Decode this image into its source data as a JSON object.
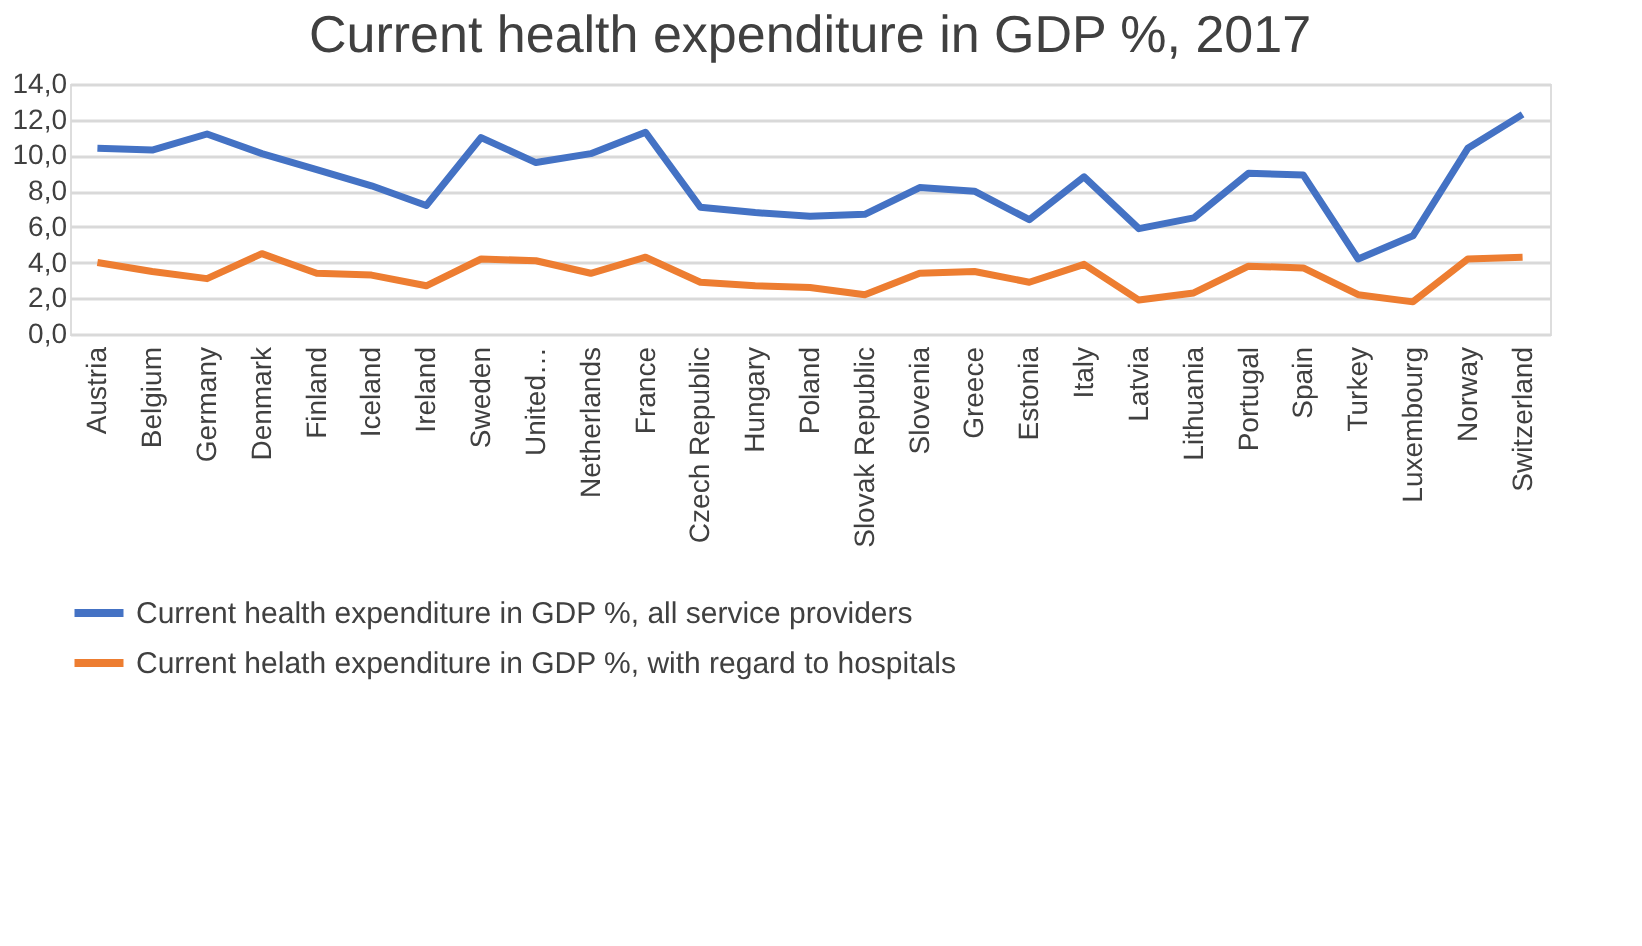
{
  "chart_data": {
    "type": "line",
    "title": "Current health expenditure in GDP %, 2017",
    "categories": [
      "Austria",
      "Belgium",
      "Germany",
      "Denmark",
      "Finland",
      "Iceland",
      "Ireland",
      "Sweden",
      "United…",
      "Netherlands",
      "France",
      "Czech Republic",
      "Hungary",
      "Poland",
      "Slovak Republic",
      "Slovenia",
      "Greece",
      "Estonia",
      "Italy",
      "Latvia",
      "Lithuania",
      "Portugal",
      "Spain",
      "Turkey",
      "Luxembourg",
      "Norway",
      "Switzerland"
    ],
    "series": [
      {
        "name": "Current health expenditure in GDP %, all service providers",
        "color": "#4472c4",
        "values": [
          10.4,
          10.3,
          11.2,
          10.1,
          9.2,
          8.3,
          7.2,
          11.0,
          9.6,
          10.1,
          11.3,
          7.1,
          6.8,
          6.6,
          6.7,
          8.2,
          8.0,
          6.4,
          8.8,
          5.9,
          6.5,
          9.0,
          8.9,
          4.2,
          5.5,
          10.4,
          12.3
        ]
      },
      {
        "name": "Current helath expenditure in GDP %, with regard to hospitals",
        "color": "#ed7d31",
        "values": [
          4.0,
          3.5,
          3.1,
          4.5,
          3.4,
          3.3,
          2.7,
          4.2,
          4.1,
          3.4,
          4.3,
          2.9,
          2.7,
          2.6,
          2.2,
          3.4,
          3.5,
          2.9,
          3.9,
          1.9,
          2.3,
          3.8,
          3.7,
          2.2,
          1.8,
          4.2,
          4.3
        ]
      }
    ],
    "ylim": [
      0,
      14
    ],
    "yticks": [
      {
        "value": 0,
        "label": "0,0"
      },
      {
        "value": 2,
        "label": "2,0"
      },
      {
        "value": 4,
        "label": "4,0"
      },
      {
        "value": 6,
        "label": "6,0"
      },
      {
        "value": 8,
        "label": "8,0"
      },
      {
        "value": 10,
        "label": "10,0"
      },
      {
        "value": 12,
        "label": "12,0"
      },
      {
        "value": 14,
        "label": "14,0"
      }
    ],
    "grid": "y",
    "legend": "bottom",
    "marker": "none",
    "line_style": "solid"
  }
}
